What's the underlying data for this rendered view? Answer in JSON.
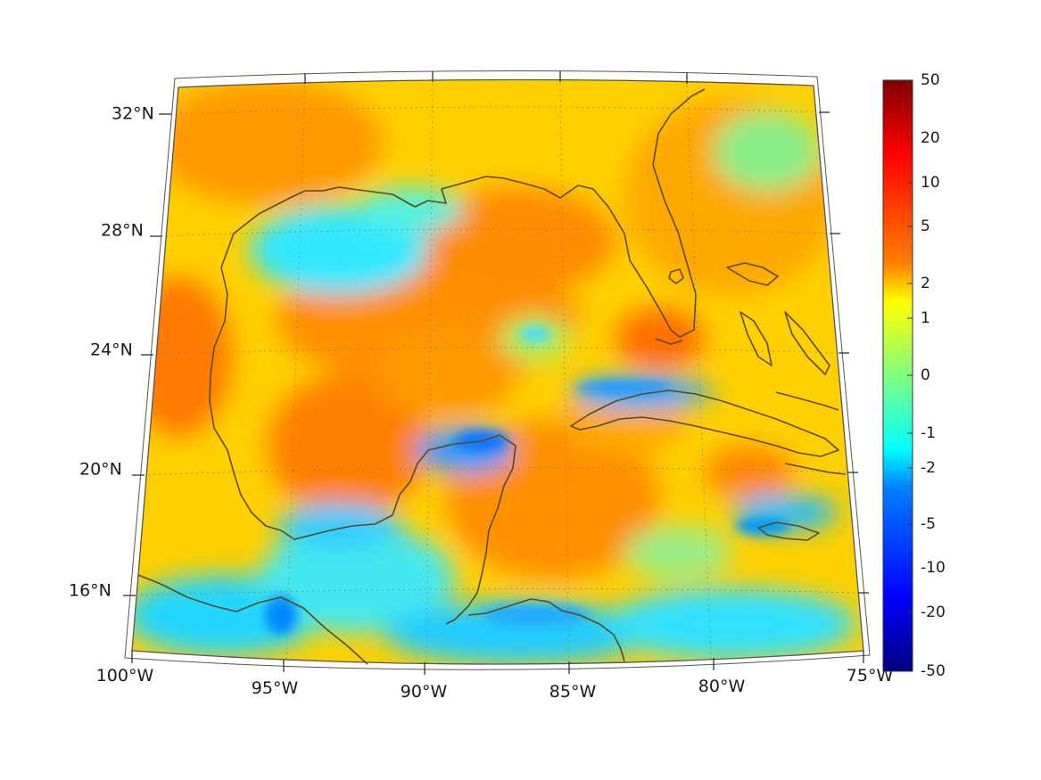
{
  "map": {
    "lon_labels": [
      "100°W",
      "95°W",
      "90°W",
      "85°W",
      "80°W",
      "75°W"
    ],
    "lat_labels": [
      "32°N",
      "28°N",
      "24°N",
      "20°N",
      "16°N"
    ]
  },
  "colorbar": {
    "ticks": [
      "50",
      "20",
      "10",
      "5",
      "2",
      "1",
      "0",
      "-1",
      "-2",
      "-5",
      "-10",
      "-20",
      "-50"
    ],
    "colormap": "jet",
    "colors": [
      "#00007f",
      "#0000ff",
      "#007fff",
      "#00ffff",
      "#7fff7f",
      "#ffff00",
      "#ff7f00",
      "#ff0000",
      "#7f0000"
    ]
  },
  "palette": {
    "coastline": "#5a4a1e",
    "grid": "#7a7a7a",
    "frame": "#555555"
  }
}
